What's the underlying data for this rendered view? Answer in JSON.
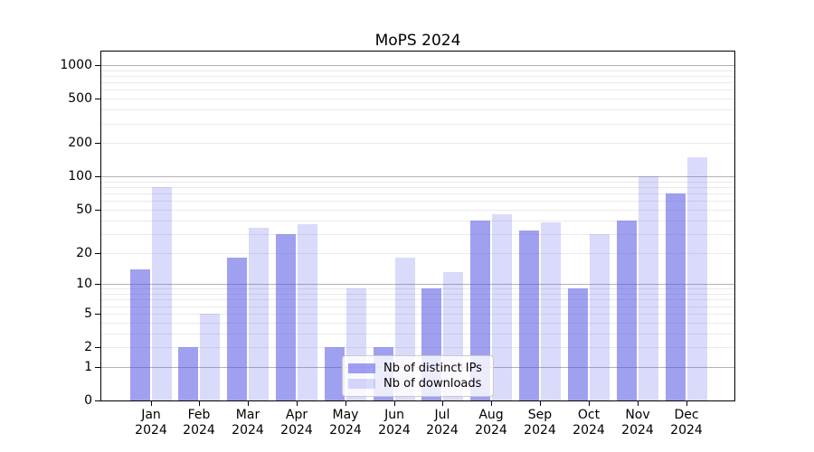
{
  "title": "MoPS 2024",
  "chart_data": {
    "type": "bar",
    "title": "MoPS 2024",
    "categories": [
      "Jan",
      "Feb",
      "Mar",
      "Apr",
      "May",
      "Jun",
      "Jul",
      "Aug",
      "Sep",
      "Oct",
      "Nov",
      "Dec"
    ],
    "category_year": "2024",
    "series": [
      {
        "name": "Nb of distinct IPs",
        "values": [
          14,
          2,
          18,
          30,
          2,
          2,
          9,
          40,
          32,
          9,
          40,
          70
        ]
      },
      {
        "name": "Nb of downloads",
        "values": [
          80,
          5,
          34,
          37,
          9,
          18,
          13,
          45,
          38,
          30,
          100,
          150
        ]
      }
    ],
    "yscale": "symlog-log1p",
    "y_ticks": [
      0,
      1,
      2,
      5,
      10,
      20,
      50,
      100,
      200,
      500,
      1000
    ],
    "y_tick_labels": [
      "0",
      "1",
      "2",
      "5",
      "10",
      "20",
      "50",
      "100",
      "200",
      "500",
      "1000"
    ],
    "y_major_gridlines": [
      1,
      10,
      100,
      1000
    ],
    "ylim": [
      0,
      1258
    ],
    "grid": "horizontal major + log minors",
    "legend_position": "inside lower-center"
  },
  "colors": {
    "bar_base": "#5555e6",
    "bar_ips_alpha": 0.56,
    "bar_downloads_alpha": 0.22,
    "bar_ips_solid": "#9f9ff0",
    "bar_downloads_solid": "#d9d9f8",
    "grid_major": "#b2b2b2",
    "grid_minor": "#eaeaea",
    "axis": "#000000",
    "text": "#000000",
    "legend_border": "#cccccc"
  }
}
